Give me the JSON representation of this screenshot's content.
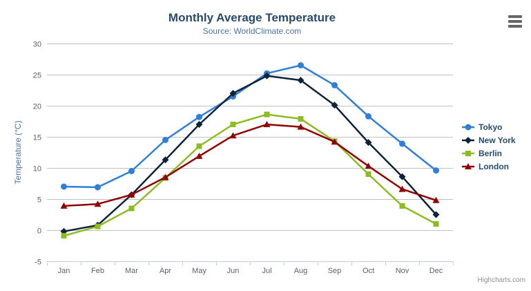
{
  "header": {
    "title": "Monthly Average Temperature",
    "subtitle": "Source: WorldClimate.com"
  },
  "credit_label": "Highcharts.com",
  "colors": {
    "title_text": "#274b6d",
    "subtitle_text": "#4d759e",
    "axis_label": "#606060",
    "axis_title": "#4d759e",
    "grid_line": "#c0c0c0",
    "axis_line": "#c0d0e0",
    "legend_text": "#274b6d",
    "menu_icon": "#666666",
    "credit_text": "#909090"
  },
  "icons": {
    "context_menu": "hamburger-icon"
  },
  "chart_data": {
    "type": "line",
    "title": "Monthly Average Temperature",
    "subtitle": "Source: WorldClimate.com",
    "categories": [
      "Jan",
      "Feb",
      "Mar",
      "Apr",
      "May",
      "Jun",
      "Jul",
      "Aug",
      "Sep",
      "Oct",
      "Nov",
      "Dec"
    ],
    "xlabel": "",
    "ylabel": "Temperature (°C)",
    "ylim": [
      -5,
      30
    ],
    "ytick_step": 5,
    "grid": true,
    "legend_position": "right",
    "series": [
      {
        "name": "Tokyo",
        "color": "#2f7ed8",
        "marker": "circle",
        "values": [
          7.0,
          6.9,
          9.5,
          14.5,
          18.2,
          21.5,
          25.2,
          26.5,
          23.3,
          18.3,
          13.9,
          9.6
        ]
      },
      {
        "name": "New York",
        "color": "#0d233a",
        "marker": "diamond",
        "values": [
          -0.2,
          0.8,
          5.7,
          11.3,
          17.0,
          22.0,
          24.8,
          24.1,
          20.1,
          14.1,
          8.6,
          2.5
        ]
      },
      {
        "name": "Berlin",
        "color": "#8bbc21",
        "marker": "square",
        "values": [
          -0.9,
          0.6,
          3.5,
          8.4,
          13.5,
          17.0,
          18.6,
          17.9,
          14.3,
          9.0,
          3.9,
          1.0
        ]
      },
      {
        "name": "London",
        "color": "#910000",
        "marker": "triangle-up",
        "values": [
          3.9,
          4.2,
          5.7,
          8.5,
          11.9,
          15.2,
          17.0,
          16.6,
          14.2,
          10.3,
          6.6,
          4.8
        ]
      }
    ]
  }
}
